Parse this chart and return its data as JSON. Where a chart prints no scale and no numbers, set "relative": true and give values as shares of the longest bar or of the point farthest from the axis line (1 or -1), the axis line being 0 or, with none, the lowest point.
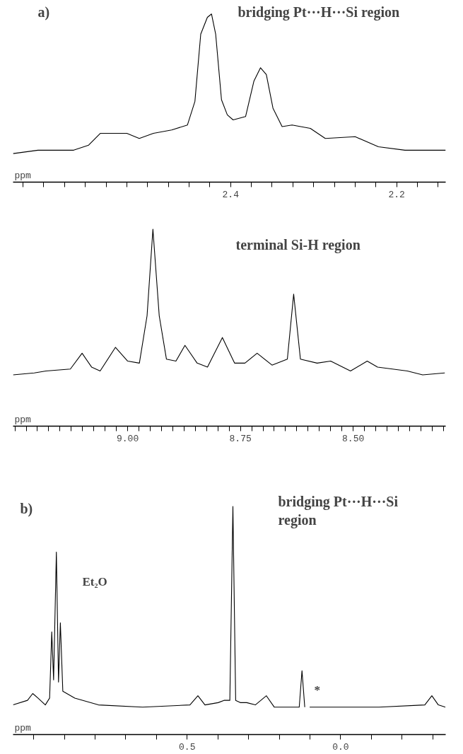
{
  "chart_data": [
    {
      "type": "line",
      "relative": true,
      "color": "#000000",
      "xlabel": "ppm",
      "xlim": [
        2.662,
        2.141
      ],
      "xticks": [
        {
          "value": 2.65,
          "label": null
        },
        {
          "value": 2.625,
          "label": null
        },
        {
          "value": 2.6,
          "label": null
        },
        {
          "value": 2.575,
          "label": null
        },
        {
          "value": 2.55,
          "label": null
        },
        {
          "value": 2.525,
          "label": null
        },
        {
          "value": 2.5,
          "label": null
        },
        {
          "value": 2.475,
          "label": null
        },
        {
          "value": 2.45,
          "label": null
        },
        {
          "value": 2.425,
          "label": null
        },
        2.4,
        {
          "value": 2.375,
          "label": null
        },
        {
          "value": 2.35,
          "label": null
        },
        {
          "value": 2.325,
          "label": null
        },
        {
          "value": 2.3,
          "label": null
        },
        {
          "value": 2.275,
          "label": null
        },
        {
          "value": 2.25,
          "label": null
        },
        {
          "value": 2.225,
          "label": null
        },
        2.2,
        {
          "value": 2.175,
          "label": null
        },
        {
          "value": 2.15,
          "label": null
        }
      ],
      "x": [
        2.662,
        2.632,
        2.589,
        2.571,
        2.557,
        2.535,
        2.525,
        2.51,
        2.493,
        2.471,
        2.452,
        2.443,
        2.436,
        2.428,
        2.423,
        2.418,
        2.411,
        2.404,
        2.397,
        2.382,
        2.372,
        2.364,
        2.357,
        2.349,
        2.338,
        2.326,
        2.304,
        2.286,
        2.25,
        2.222,
        2.19,
        2.141
      ],
      "values": [
        0.17,
        0.19,
        0.19,
        0.22,
        0.29,
        0.29,
        0.29,
        0.26,
        0.29,
        0.31,
        0.34,
        0.48,
        0.88,
        0.98,
        1.0,
        0.88,
        0.49,
        0.4,
        0.37,
        0.39,
        0.6,
        0.68,
        0.64,
        0.44,
        0.33,
        0.34,
        0.32,
        0.26,
        0.27,
        0.21,
        0.19,
        0.19
      ],
      "annotations": [
        "a)",
        "bridging Pt···H···Si region"
      ]
    },
    {
      "type": "line",
      "relative": true,
      "color": "#000000",
      "xlabel": "ppm",
      "xlim": [
        9.254,
        8.295
      ],
      "xticks": [
        {
          "value": 9.25,
          "label": null
        },
        {
          "value": 9.225,
          "label": null
        },
        {
          "value": 9.2,
          "label": null
        },
        {
          "value": 9.175,
          "label": null
        },
        {
          "value": 9.15,
          "label": null
        },
        {
          "value": 9.125,
          "label": null
        },
        {
          "value": 9.1,
          "label": null
        },
        {
          "value": 9.075,
          "label": null
        },
        {
          "value": 9.05,
          "label": null
        },
        {
          "value": 9.025,
          "label": null
        },
        {
          "value": 9.0,
          "label": "9.00"
        },
        {
          "value": 8.975,
          "label": null
        },
        {
          "value": 8.95,
          "label": null
        },
        {
          "value": 8.925,
          "label": null
        },
        {
          "value": 8.9,
          "label": null
        },
        {
          "value": 8.875,
          "label": null
        },
        {
          "value": 8.85,
          "label": null
        },
        {
          "value": 8.825,
          "label": null
        },
        {
          "value": 8.8,
          "label": null
        },
        {
          "value": 8.775,
          "label": null
        },
        8.75,
        {
          "value": 8.725,
          "label": null
        },
        {
          "value": 8.7,
          "label": null
        },
        {
          "value": 8.675,
          "label": null
        },
        {
          "value": 8.65,
          "label": null
        },
        {
          "value": 8.625,
          "label": null
        },
        {
          "value": 8.6,
          "label": null
        },
        {
          "value": 8.575,
          "label": null
        },
        {
          "value": 8.55,
          "label": null
        },
        {
          "value": 8.525,
          "label": null
        },
        {
          "value": 8.5,
          "label": "8.50"
        },
        {
          "value": 8.475,
          "label": null
        },
        {
          "value": 8.45,
          "label": null
        },
        {
          "value": 8.425,
          "label": null
        },
        {
          "value": 8.4,
          "label": null
        },
        {
          "value": 8.375,
          "label": null
        },
        {
          "value": 8.35,
          "label": null
        },
        {
          "value": 8.325,
          "label": null
        },
        {
          "value": 8.3,
          "label": null
        }
      ],
      "x": [
        9.254,
        9.207,
        9.181,
        9.127,
        9.101,
        9.08,
        9.061,
        9.027,
        9.0,
        8.974,
        8.957,
        8.944,
        8.93,
        8.914,
        8.893,
        8.873,
        8.846,
        8.823,
        8.79,
        8.763,
        8.74,
        8.713,
        8.68,
        8.646,
        8.632,
        8.617,
        8.58,
        8.55,
        8.506,
        8.469,
        8.446,
        8.38,
        8.346,
        8.297
      ],
      "values": [
        0.26,
        0.27,
        0.28,
        0.29,
        0.37,
        0.3,
        0.28,
        0.4,
        0.33,
        0.32,
        0.56,
        1.0,
        0.56,
        0.34,
        0.33,
        0.41,
        0.32,
        0.3,
        0.45,
        0.32,
        0.32,
        0.37,
        0.31,
        0.34,
        0.67,
        0.34,
        0.32,
        0.33,
        0.28,
        0.33,
        0.3,
        0.28,
        0.26,
        0.27
      ],
      "annotations": [
        "terminal Si-H region"
      ]
    },
    {
      "type": "line",
      "relative": true,
      "color": "#000000",
      "xlabel": "ppm",
      "xlim": [
        1.067,
        -0.342
      ],
      "xticks": [
        {
          "value": 1.0,
          "label": null
        },
        {
          "value": 0.9,
          "label": null
        },
        {
          "value": 0.8,
          "label": null
        },
        {
          "value": 0.7,
          "label": null
        },
        {
          "value": 0.6,
          "label": null
        },
        0.5,
        {
          "value": 0.4,
          "label": null
        },
        {
          "value": 0.3,
          "label": null
        },
        {
          "value": 0.2,
          "label": null
        },
        {
          "value": 0.1,
          "label": null
        },
        {
          "value": 0,
          "label": "0.0"
        },
        {
          "value": -0.1,
          "label": null
        },
        {
          "value": -0.2,
          "label": null
        },
        {
          "value": -0.3,
          "label": null
        }
      ],
      "x": [
        1.067,
        1.02,
        1.003,
        0.986,
        0.962,
        0.948,
        0.941,
        0.935,
        0.926,
        0.919,
        0.913,
        0.905,
        0.866,
        0.789,
        0.645,
        0.491,
        0.465,
        0.442,
        0.399,
        0.38,
        0.361,
        0.351,
        0.342,
        0.327,
        0.306,
        0.278,
        0.242,
        0.216,
        0.135,
        0.126,
        0.117,
        0.109,
        0.101,
        -0.125,
        -0.274,
        -0.297,
        -0.318,
        -0.341
      ],
      "values": [
        0.13,
        0.15,
        0.18,
        0.16,
        0.13,
        0.16,
        0.45,
        0.24,
        0.8,
        0.23,
        0.49,
        0.19,
        0.16,
        0.13,
        0.12,
        0.13,
        0.17,
        0.13,
        0.14,
        0.15,
        0.15,
        1.0,
        0.15,
        0.14,
        0.14,
        0.13,
        0.17,
        0.12,
        0.12,
        0.28,
        0.12,
        null,
        0.12,
        0.12,
        0.13,
        0.17,
        0.13,
        0.12
      ],
      "annotations": [
        "b)",
        "bridging Pt···H···Si\nregion",
        "Et₂O",
        "*"
      ]
    }
  ]
}
